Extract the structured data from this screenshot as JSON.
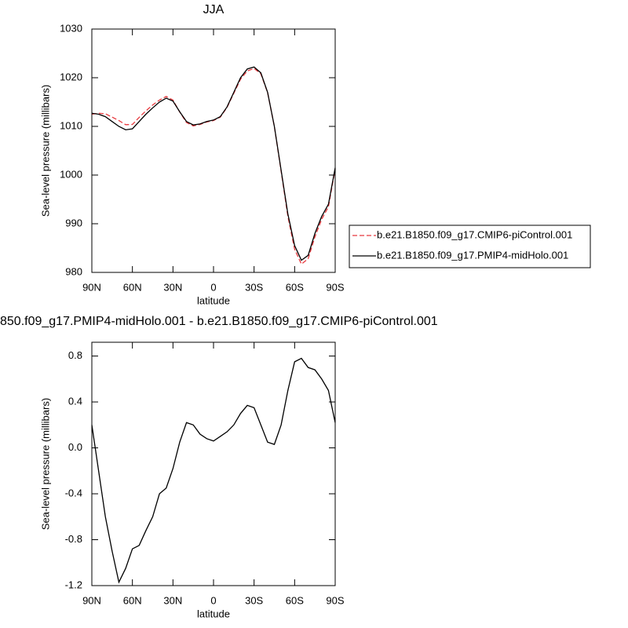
{
  "chart_data": [
    {
      "type": "line",
      "title": "JJA",
      "xlabel": "latitude",
      "ylabel": "Sea-level pressure (millibars)",
      "x": [
        90,
        85,
        80,
        75,
        70,
        65,
        60,
        55,
        50,
        45,
        40,
        35,
        30,
        25,
        20,
        15,
        10,
        5,
        0,
        -5,
        -10,
        -15,
        -20,
        -25,
        -30,
        -35,
        -40,
        -45,
        -50,
        -55,
        -60,
        -65,
        -70,
        -75,
        -80,
        -85,
        -90
      ],
      "xlim": [
        90,
        -90
      ],
      "xticks": [
        {
          "value": 90,
          "label": "90N"
        },
        {
          "value": 60,
          "label": "60N"
        },
        {
          "value": 30,
          "label": "30N"
        },
        0,
        {
          "value": -30,
          "label": "30S"
        },
        {
          "value": -60,
          "label": "60S"
        },
        {
          "value": -90,
          "label": "90S"
        }
      ],
      "ylim": [
        980,
        1030
      ],
      "yticks": [
        980,
        990,
        1000,
        1010,
        1020,
        1030
      ],
      "legend": "right",
      "series": [
        {
          "name": "b.e21.B1850.f09_g17.CMIP6-piControl.001",
          "color": "#e8383d",
          "style": "dashed",
          "values": [
            1012.5,
            1012.7,
            1012.6,
            1011.9,
            1011.2,
            1010.35,
            1010.4,
            1011.85,
            1013.2,
            1014.4,
            1015.4,
            1016.15,
            1015.4,
            1012.95,
            1010.8,
            1010.1,
            1010.4,
            1010.9,
            1011.2,
            1011.9,
            1013.9,
            1016.8,
            1019.7,
            1021.4,
            1021.9,
            1020.8,
            1016.95,
            1009.97,
            1000.8,
            991.5,
            984.75,
            981.7,
            982.8,
            987.3,
            990.9,
            993.5,
            1001.3
          ]
        },
        {
          "name": "b.e21.B1850.f09_g17.PMIP4-midHolo.001",
          "color": "#000000",
          "style": "solid",
          "values": [
            1012.7,
            1012.5,
            1012.0,
            1011.0,
            1010.0,
            1009.3,
            1009.5,
            1011.0,
            1012.5,
            1013.8,
            1015.0,
            1015.8,
            1015.2,
            1013.0,
            1011.0,
            1010.3,
            1010.5,
            1011.0,
            1011.3,
            1012.0,
            1014.0,
            1017.0,
            1020.0,
            1021.8,
            1022.2,
            1021.0,
            1017.0,
            1010.0,
            1001.0,
            992.0,
            985.5,
            982.5,
            983.5,
            988.0,
            991.5,
            994.0,
            1001.5
          ]
        }
      ]
    },
    {
      "type": "line",
      "title": "850.f09_g17.PMIP4-midHolo.001 - b.e21.B1850.f09_g17.CMIP6-piControl.001",
      "xlabel": "latitude",
      "ylabel": "Sea-level pressure (millibars)",
      "x": [
        90,
        85,
        80,
        75,
        70,
        65,
        60,
        55,
        50,
        45,
        40,
        35,
        30,
        25,
        20,
        15,
        10,
        5,
        0,
        -5,
        -10,
        -15,
        -20,
        -25,
        -30,
        -35,
        -40,
        -45,
        -50,
        -55,
        -60,
        -65,
        -70,
        -75,
        -80,
        -85,
        -90
      ],
      "xlim": [
        90,
        -90
      ],
      "xticks": [
        {
          "value": 90,
          "label": "90N"
        },
        {
          "value": 60,
          "label": "60N"
        },
        {
          "value": 30,
          "label": "30N"
        },
        0,
        {
          "value": -30,
          "label": "30S"
        },
        {
          "value": -60,
          "label": "60S"
        },
        {
          "value": -90,
          "label": "90S"
        }
      ],
      "ylim": [
        -1.2,
        0.92
      ],
      "yticks": [
        -1.2,
        -0.8,
        -0.4,
        {
          "value": 0,
          "label": "0.0"
        },
        0.4,
        0.8
      ],
      "series": [
        {
          "color": "#000000",
          "style": "solid",
          "values": [
            0.2,
            -0.2,
            -0.6,
            -0.9,
            -1.17,
            -1.05,
            -0.88,
            -0.85,
            -0.72,
            -0.6,
            -0.4,
            -0.35,
            -0.18,
            0.05,
            0.22,
            0.2,
            0.12,
            0.08,
            0.06,
            0.1,
            0.14,
            0.2,
            0.3,
            0.37,
            0.35,
            0.2,
            0.05,
            0.03,
            0.2,
            0.5,
            0.75,
            0.78,
            0.7,
            0.68,
            0.6,
            0.5,
            0.22
          ]
        }
      ]
    }
  ]
}
